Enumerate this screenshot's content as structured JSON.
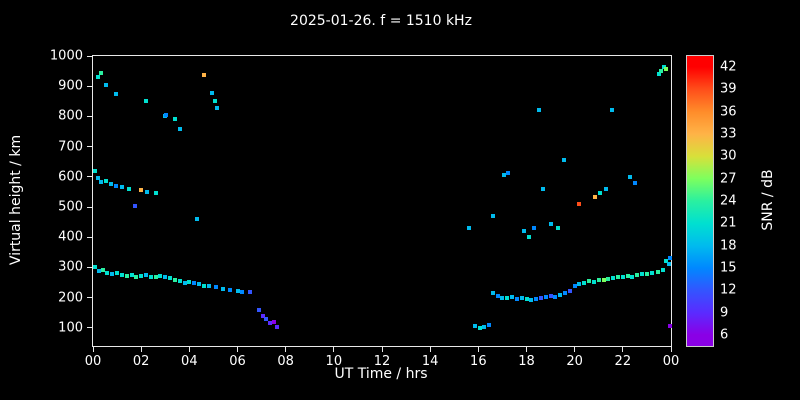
{
  "title": "2025-01-26. f = 1510 kHz",
  "chart_data": {
    "type": "scatter",
    "title": "2025-01-26. f = 1510 kHz",
    "xlabel": "UT Time / hrs",
    "ylabel": "Virtual height / km",
    "xlim": [
      0,
      24
    ],
    "ylim": [
      40,
      1000
    ],
    "x_tick_values": [
      0,
      2,
      4,
      6,
      8,
      10,
      12,
      14,
      16,
      18,
      20,
      22,
      24
    ],
    "x_tick_labels": [
      "00",
      "02",
      "04",
      "06",
      "08",
      "10",
      "12",
      "14",
      "16",
      "18",
      "20",
      "22",
      "00"
    ],
    "y_ticks": [
      100,
      200,
      300,
      400,
      500,
      600,
      700,
      800,
      900,
      1000
    ],
    "colorbar": {
      "label": "SNR / dB",
      "ticks": [
        6,
        9,
        12,
        15,
        18,
        21,
        24,
        27,
        30,
        33,
        36,
        39,
        42
      ],
      "vmin": 4.5,
      "vmax": 43.5,
      "stops": [
        {
          "v": 6,
          "color": "#8a00e6"
        },
        {
          "v": 9,
          "color": "#5a2bff"
        },
        {
          "v": 12,
          "color": "#3355ff"
        },
        {
          "v": 15,
          "color": "#0088ff"
        },
        {
          "v": 18,
          "color": "#00bbee"
        },
        {
          "v": 21,
          "color": "#00e0d0"
        },
        {
          "v": 24,
          "color": "#2af0a0"
        },
        {
          "v": 27,
          "color": "#7dff5e"
        },
        {
          "v": 30,
          "color": "#d8e03a"
        },
        {
          "v": 33,
          "color": "#ffb347"
        },
        {
          "v": 36,
          "color": "#ff8c2a"
        },
        {
          "v": 39,
          "color": "#ff4e1a"
        },
        {
          "v": 42,
          "color": "#ff0000"
        }
      ]
    },
    "points": [
      [
        0.1,
        300,
        21
      ],
      [
        0.25,
        288,
        18
      ],
      [
        0.4,
        290,
        24
      ],
      [
        0.6,
        283,
        21
      ],
      [
        0.8,
        280,
        18
      ],
      [
        1.0,
        282,
        21
      ],
      [
        1.2,
        276,
        21
      ],
      [
        1.4,
        272,
        24
      ],
      [
        1.6,
        274,
        21
      ],
      [
        1.8,
        270,
        24
      ],
      [
        2.0,
        273,
        21
      ],
      [
        2.2,
        275,
        18
      ],
      [
        2.4,
        270,
        21
      ],
      [
        2.6,
        268,
        24
      ],
      [
        2.8,
        271,
        21
      ],
      [
        3.0,
        269,
        18
      ],
      [
        3.2,
        264,
        21
      ],
      [
        3.4,
        258,
        24
      ],
      [
        3.6,
        254,
        21
      ],
      [
        3.8,
        250,
        18
      ],
      [
        4.0,
        252,
        21
      ],
      [
        4.2,
        248,
        15
      ],
      [
        4.4,
        244,
        18
      ],
      [
        4.6,
        240,
        21
      ],
      [
        4.8,
        237,
        18
      ],
      [
        5.1,
        234,
        15
      ],
      [
        5.4,
        230,
        18
      ],
      [
        5.7,
        227,
        15
      ],
      [
        6.0,
        222,
        18
      ],
      [
        6.2,
        218,
        15
      ],
      [
        6.5,
        220,
        12
      ],
      [
        6.9,
        158,
        12
      ],
      [
        7.05,
        140,
        9
      ],
      [
        7.2,
        128,
        12
      ],
      [
        7.35,
        115,
        9
      ],
      [
        7.5,
        120,
        6
      ],
      [
        7.65,
        104,
        9
      ],
      [
        0.1,
        620,
        21
      ],
      [
        0.2,
        595,
        18
      ],
      [
        0.35,
        582,
        18
      ],
      [
        0.55,
        586,
        21
      ],
      [
        0.75,
        576,
        18
      ],
      [
        0.95,
        570,
        15
      ],
      [
        1.2,
        566,
        18
      ],
      [
        1.5,
        560,
        21
      ],
      [
        1.75,
        505,
        12
      ],
      [
        2.0,
        556,
        33
      ],
      [
        2.25,
        550,
        18
      ],
      [
        2.6,
        545,
        21
      ],
      [
        4.3,
        460,
        18
      ],
      [
        0.2,
        930,
        21
      ],
      [
        0.35,
        945,
        24
      ],
      [
        0.55,
        905,
        18
      ],
      [
        0.95,
        875,
        18
      ],
      [
        2.2,
        850,
        21
      ],
      [
        3.0,
        800,
        18
      ],
      [
        3.05,
        805,
        15
      ],
      [
        3.4,
        792,
        21
      ],
      [
        3.6,
        760,
        18
      ],
      [
        4.6,
        938,
        33
      ],
      [
        4.95,
        878,
        18
      ],
      [
        5.05,
        852,
        21
      ],
      [
        5.15,
        828,
        18
      ],
      [
        15.85,
        106,
        18
      ],
      [
        16.05,
        100,
        21
      ],
      [
        16.25,
        102,
        18
      ],
      [
        16.45,
        108,
        15
      ],
      [
        16.6,
        215,
        18
      ],
      [
        16.8,
        206,
        15
      ],
      [
        17.0,
        200,
        18
      ],
      [
        17.2,
        198,
        21
      ],
      [
        17.4,
        201,
        18
      ],
      [
        17.6,
        196,
        15
      ],
      [
        17.8,
        198,
        18
      ],
      [
        18.0,
        195,
        21
      ],
      [
        18.2,
        192,
        18
      ],
      [
        18.4,
        195,
        15
      ],
      [
        18.6,
        198,
        12
      ],
      [
        18.8,
        201,
        15
      ],
      [
        19.0,
        206,
        12
      ],
      [
        19.2,
        201,
        15
      ],
      [
        19.4,
        210,
        18
      ],
      [
        19.6,
        215,
        15
      ],
      [
        19.8,
        222,
        12
      ],
      [
        20.0,
        240,
        15
      ],
      [
        20.2,
        246,
        18
      ],
      [
        20.4,
        250,
        21
      ],
      [
        20.6,
        255,
        24
      ],
      [
        20.8,
        251,
        21
      ],
      [
        21.0,
        260,
        24
      ],
      [
        21.2,
        258,
        27
      ],
      [
        21.4,
        262,
        24
      ],
      [
        21.6,
        265,
        21
      ],
      [
        21.8,
        268,
        24
      ],
      [
        22.0,
        270,
        21
      ],
      [
        22.2,
        272,
        24
      ],
      [
        22.4,
        268,
        21
      ],
      [
        22.6,
        275,
        24
      ],
      [
        22.8,
        278,
        21
      ],
      [
        23.0,
        280,
        24
      ],
      [
        23.2,
        282,
        21
      ],
      [
        23.45,
        285,
        24
      ],
      [
        23.65,
        290,
        21
      ],
      [
        23.8,
        322,
        21
      ],
      [
        23.9,
        312,
        18
      ],
      [
        23.95,
        330,
        15
      ],
      [
        23.95,
        105,
        6
      ],
      [
        15.6,
        430,
        18
      ],
      [
        16.6,
        470,
        18
      ],
      [
        17.05,
        605,
        18
      ],
      [
        17.25,
        612,
        15
      ],
      [
        17.9,
        420,
        18
      ],
      [
        18.1,
        400,
        21
      ],
      [
        18.3,
        432,
        15
      ],
      [
        18.5,
        820,
        18
      ],
      [
        18.7,
        560,
        18
      ],
      [
        19.0,
        445,
        18
      ],
      [
        19.3,
        430,
        21
      ],
      [
        19.55,
        655,
        18
      ],
      [
        20.2,
        510,
        39
      ],
      [
        20.85,
        532,
        33
      ],
      [
        21.05,
        545,
        21
      ],
      [
        21.3,
        560,
        18
      ],
      [
        21.55,
        820,
        18
      ],
      [
        22.3,
        600,
        18
      ],
      [
        22.5,
        580,
        15
      ],
      [
        23.5,
        940,
        21
      ],
      [
        23.6,
        952,
        24
      ],
      [
        23.7,
        962,
        21
      ],
      [
        23.8,
        956,
        27
      ]
    ]
  }
}
